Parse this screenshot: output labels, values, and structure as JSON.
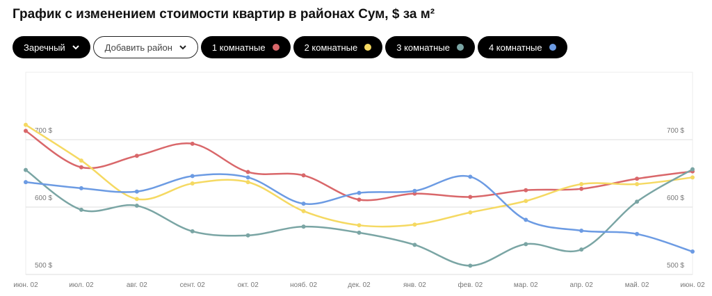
{
  "filters": {
    "district": "Заречный",
    "add_district": "Добавить район"
  },
  "chart_data": {
    "type": "line",
    "title": "График с изменением стоимости квартир в районах Сум, $ за м²",
    "categories": [
      "июн. 02",
      "июл. 02",
      "авг. 02",
      "сент. 02",
      "окт. 02",
      "нояб. 02",
      "дек. 02",
      "янв. 02",
      "фев. 02",
      "мар. 02",
      "апр. 02",
      "май. 02",
      "июн. 02"
    ],
    "series": [
      {
        "name": "1 комнатные",
        "color": "#d9676a",
        "values": [
          713,
          659,
          676,
          694,
          652,
          647,
          611,
          620,
          615,
          625,
          627,
          642,
          653
        ]
      },
      {
        "name": "2 комнатные",
        "color": "#f5d962",
        "values": [
          722,
          669,
          612,
          635,
          637,
          594,
          573,
          574,
          592,
          609,
          634,
          634,
          644
        ]
      },
      {
        "name": "3 комнатные",
        "color": "#7aa5a4",
        "values": [
          655,
          596,
          602,
          564,
          558,
          571,
          562,
          544,
          513,
          545,
          537,
          608,
          656
        ]
      },
      {
        "name": "4 комнатные",
        "color": "#6c9be3",
        "values": [
          637,
          628,
          623,
          646,
          644,
          605,
          621,
          624,
          645,
          581,
          565,
          560,
          534
        ]
      }
    ],
    "ylim": [
      500,
      800
    ],
    "yticks": [
      {
        "value": 500,
        "label": "500 $"
      },
      {
        "value": 600,
        "label": "600 $"
      },
      {
        "value": 700,
        "label": "700 $"
      }
    ],
    "grid": true,
    "smooth": true
  }
}
